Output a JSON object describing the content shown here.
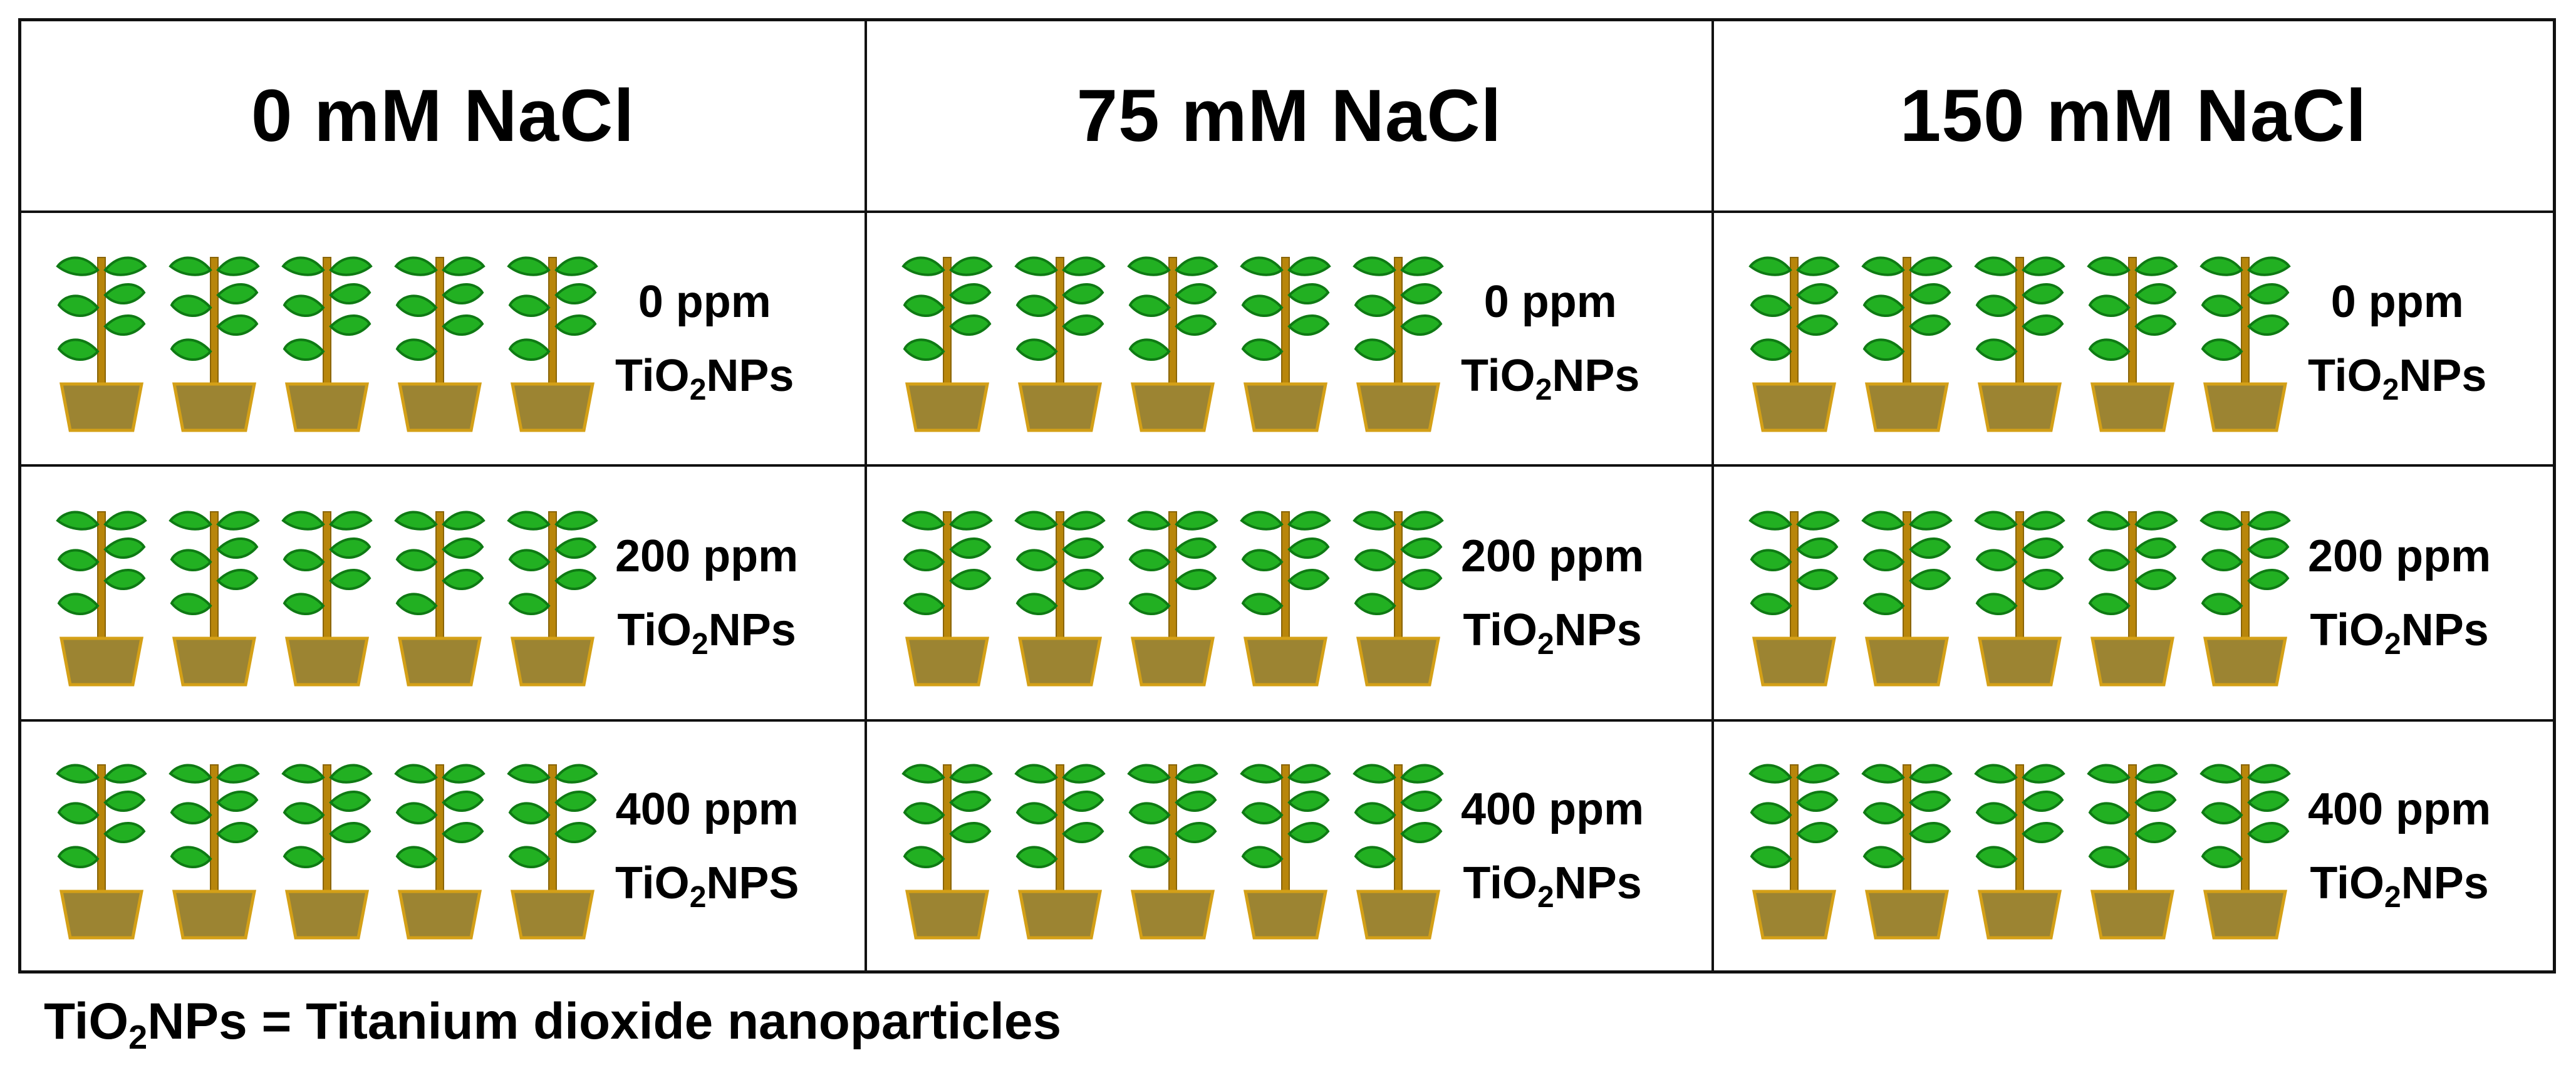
{
  "headers": [
    "0 mM NaCl",
    "75 mM NaCl",
    "150 mM NaCl"
  ],
  "rows": [
    {
      "dose": "0 ppm",
      "cells": [
        {
          "pre": "TiO",
          "sub": "2",
          "post": "NPs"
        },
        {
          "pre": "TiO",
          "sub": "2",
          "post": "NPs"
        },
        {
          "pre": "TiO",
          "sub": "2",
          "post": "NPs"
        }
      ]
    },
    {
      "dose": "200 ppm",
      "cells": [
        {
          "pre": "TiO",
          "sub": "2",
          "post": "NPs"
        },
        {
          "pre": "TiO",
          "sub": "2",
          "post": "NPs"
        },
        {
          "pre": "TiO",
          "sub": "2",
          "post": "NPs"
        }
      ]
    },
    {
      "dose": "400 ppm",
      "cells": [
        {
          "pre": "TiO",
          "sub": "2",
          "post": "NPS"
        },
        {
          "pre": "TiO",
          "sub": "2",
          "post": "NPs"
        },
        {
          "pre": "TiO",
          "sub": "2",
          "post": "NPs"
        }
      ]
    }
  ],
  "plants_per_cell": 5,
  "footnote": {
    "pre": "TiO",
    "sub": "2",
    "post": "NPs = Titanium dioxide nanoparticles"
  },
  "colors": {
    "leaf": "#22b022",
    "leaf_dark": "#0f7a14",
    "stem": "#b8860b",
    "pot": "#9c8432",
    "pot_edge": "#d4a017",
    "border": "#111111"
  }
}
